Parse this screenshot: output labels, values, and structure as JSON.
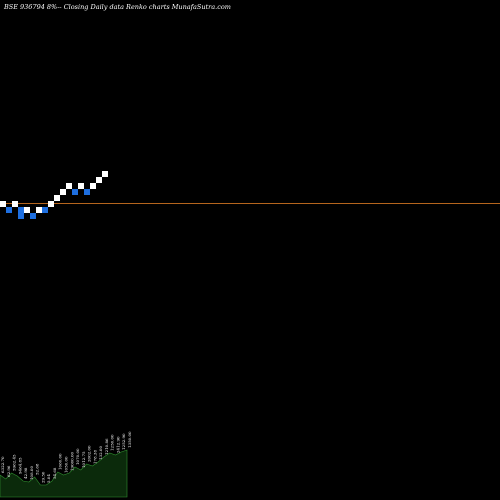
{
  "title": "BSE 936794  8%-- Closing Daily data  Renko  charts MunafaSutra.com",
  "colors": {
    "background": "#000000",
    "up_brick": "#ffffff",
    "down_brick": "#1e6fe0",
    "reference_line": "#b5651d",
    "volume_fill": "#0b2a0b",
    "volume_stroke": "#2f8f2f"
  },
  "chart_data": {
    "type": "renko",
    "bricks": [
      {
        "col": 0,
        "level": 0,
        "dir": "up"
      },
      {
        "col": 1,
        "level": -1,
        "dir": "down"
      },
      {
        "col": 2,
        "level": 0,
        "dir": "up"
      },
      {
        "col": 3,
        "level": -1,
        "dir": "down"
      },
      {
        "col": 3,
        "level": -2,
        "dir": "down"
      },
      {
        "col": 4,
        "level": -1,
        "dir": "up"
      },
      {
        "col": 5,
        "level": -2,
        "dir": "down"
      },
      {
        "col": 6,
        "level": -1,
        "dir": "up"
      },
      {
        "col": 7,
        "level": -1,
        "dir": "down"
      },
      {
        "col": 8,
        "level": 0,
        "dir": "up"
      },
      {
        "col": 9,
        "level": 1,
        "dir": "up"
      },
      {
        "col": 10,
        "level": 2,
        "dir": "up"
      },
      {
        "col": 11,
        "level": 3,
        "dir": "up"
      },
      {
        "col": 12,
        "level": 2,
        "dir": "down"
      },
      {
        "col": 13,
        "level": 3,
        "dir": "up"
      },
      {
        "col": 14,
        "level": 2,
        "dir": "down"
      },
      {
        "col": 15,
        "level": 3,
        "dir": "up"
      },
      {
        "col": 16,
        "level": 4,
        "dir": "up"
      },
      {
        "col": 17,
        "level": 5,
        "dir": "up"
      }
    ],
    "reference_level": -0.1,
    "volume": {
      "values": [
        22,
        18,
        24,
        21,
        16,
        15,
        20,
        12,
        12,
        16,
        25,
        22,
        24,
        30,
        27,
        33,
        31,
        35,
        40,
        44,
        42,
        45,
        47
      ],
      "labels": [
        "6322.70",
        "62.96",
        "5962.45",
        "9464.85",
        "42.98",
        "108.00",
        "52.68",
        "29.50",
        "5.04",
        "54.68",
        "1060.00",
        "1050.00",
        "19000.00",
        "1070.00",
        "1012.75",
        "2002.00",
        "178.38",
        "132.00",
        "1210.86",
        "1250.00",
        "2412.90",
        "1252.90",
        "1350.00"
      ]
    }
  }
}
